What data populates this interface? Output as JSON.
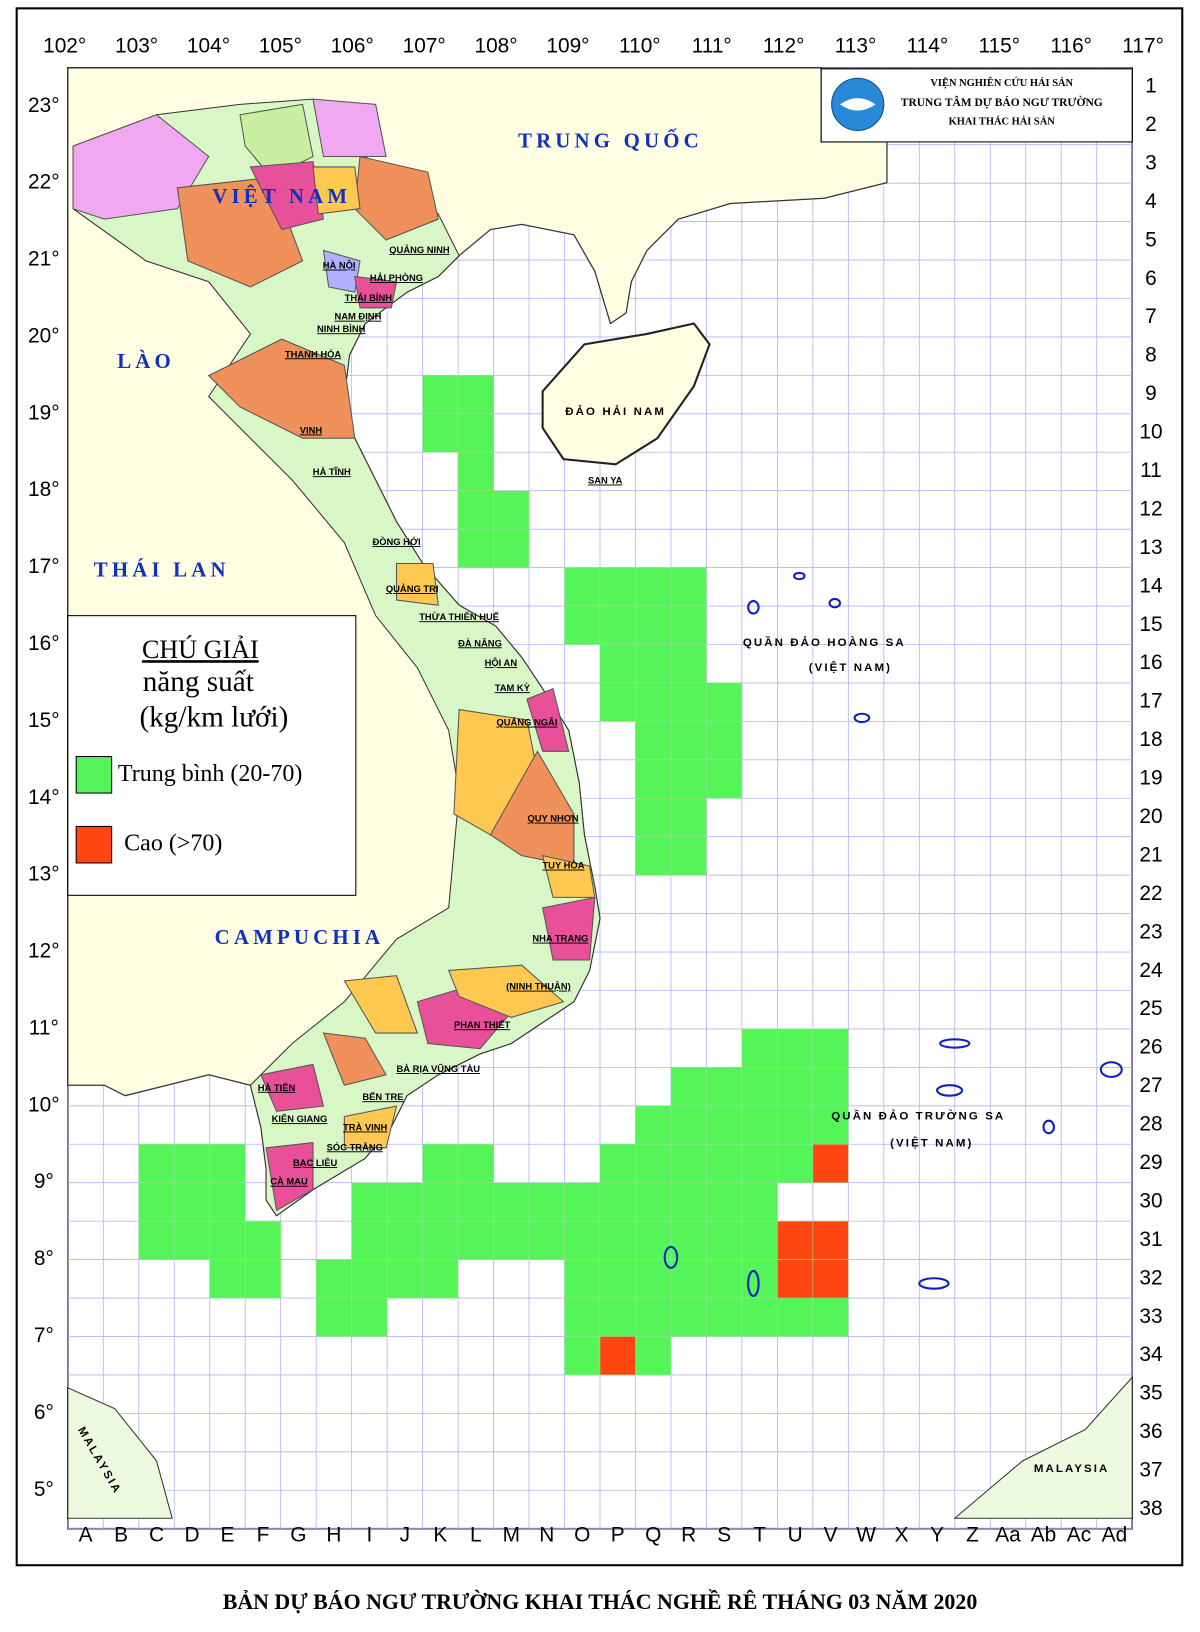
{
  "header": {
    "line1": "VIỆN NGHIÊN CỨU HẢI SẢN",
    "line2": "TRUNG TÂM DỰ BÁO NGƯ TRƯỜNG",
    "line3": "KHAI THÁC HẢI SẢN"
  },
  "longitudes": [
    "102°",
    "103°",
    "104°",
    "105°",
    "106°",
    "107°",
    "108°",
    "109°",
    "110°",
    "111°",
    "112°",
    "113°",
    "114°",
    "115°",
    "116°",
    "117°"
  ],
  "latitudes": [
    "23°",
    "22°",
    "21°",
    "20°",
    "19°",
    "18°",
    "17°",
    "16°",
    "15°",
    "14°",
    "13°",
    "12°",
    "11°",
    "10°",
    "9°",
    "8°",
    "7°",
    "6°",
    "5°"
  ],
  "columns": [
    "A",
    "B",
    "C",
    "D",
    "E",
    "F",
    "G",
    "H",
    "I",
    "J",
    "K",
    "L",
    "M",
    "N",
    "O",
    "P",
    "Q",
    "R",
    "S",
    "T",
    "U",
    "V",
    "W",
    "X",
    "Y",
    "Z",
    "Aa",
    "Ab",
    "Ac",
    "Ad"
  ],
  "rows": [
    1,
    2,
    3,
    4,
    5,
    6,
    7,
    8,
    9,
    10,
    11,
    12,
    13,
    14,
    15,
    16,
    17,
    18,
    19,
    20,
    21,
    22,
    23,
    24,
    25,
    26,
    27,
    28,
    29,
    30,
    31,
    32,
    33,
    34,
    35,
    36,
    37,
    38
  ],
  "places": [
    "TRUNG QUỐC",
    "VIỆT NAM",
    "LÀO",
    "THÁI LAN",
    "CAMPUCHIA",
    "ĐẢO HẢI NAM",
    "QUẦN ĐẢO HOÀNG SA",
    "(VIỆT NAM)",
    "QUẦN ĐẢO TRƯỜNG SA",
    "(VIỆT NAM)",
    "MALAYSIA",
    "MALAYSIA",
    "SAN YA"
  ],
  "provinces": [
    "HẢI PHÒNG",
    "QUẢNG NINH",
    "HÀ NỘI",
    "THÁI BÌNH",
    "NAM ĐỊNH",
    "NINH BÌNH",
    "THANH HÓA",
    "VINH",
    "HÀ TĨNH",
    "ĐỒNG HỚI",
    "QUẢNG TRỊ",
    "THỪA THIÊN HUẾ",
    "ĐÀ NẴNG",
    "HỘI AN",
    "TAM KỲ",
    "QUẢNG NGÃI",
    "QUY NHƠN",
    "TUY HÒA",
    "NHA TRANG",
    "(NINH THUẬN)",
    "PHAN THIẾT",
    "BÀ RỊA VŨNG TÀU",
    "BẾN TRE",
    "TRÀ VINH",
    "SÓC TRĂNG",
    "BẠC LIÊU",
    "CÀ MAU",
    "KIÊN GIANG",
    "HÀ TIÊN"
  ],
  "legend": {
    "title": "CHÚ GIẢI",
    "subtitle1": "năng suất",
    "subtitle2": "(kg/km lưới)",
    "items": [
      {
        "label": "Trung bình (20-70)",
        "color": "#55f55a",
        "cells": [
          {
            "row": 9,
            "cols": [
              "K",
              "L"
            ]
          },
          {
            "row": 10,
            "cols": [
              "K",
              "L"
            ]
          },
          {
            "row": 11,
            "cols": [
              "L"
            ]
          },
          {
            "row": 12,
            "cols": [
              "L",
              "M"
            ]
          },
          {
            "row": 13,
            "cols": [
              "L",
              "M"
            ]
          },
          {
            "row": 14,
            "cols": [
              "O",
              "P",
              "Q",
              "R"
            ]
          },
          {
            "row": 15,
            "cols": [
              "O",
              "P",
              "Q",
              "R"
            ]
          },
          {
            "row": 16,
            "cols": [
              "P",
              "Q",
              "R"
            ]
          },
          {
            "row": 17,
            "cols": [
              "P",
              "Q",
              "R",
              "S"
            ]
          },
          {
            "row": 18,
            "cols": [
              "Q",
              "R",
              "S"
            ]
          },
          {
            "row": 19,
            "cols": [
              "Q",
              "R",
              "S"
            ]
          },
          {
            "row": 20,
            "cols": [
              "Q",
              "R"
            ]
          },
          {
            "row": 21,
            "cols": [
              "Q",
              "R"
            ]
          },
          {
            "row": 26,
            "cols": [
              "T",
              "U",
              "V"
            ]
          },
          {
            "row": 27,
            "cols": [
              "R",
              "S",
              "T",
              "U",
              "V"
            ]
          },
          {
            "row": 28,
            "cols": [
              "Q",
              "R",
              "S",
              "T",
              "U",
              "V"
            ]
          },
          {
            "row": 29,
            "cols": [
              "C",
              "D",
              "E",
              "K",
              "L",
              "P",
              "Q",
              "R",
              "S",
              "T",
              "U"
            ]
          },
          {
            "row": 30,
            "cols": [
              "C",
              "D",
              "E",
              "I",
              "J",
              "K",
              "L",
              "M",
              "N",
              "O",
              "P",
              "Q",
              "R",
              "S",
              "T"
            ]
          },
          {
            "row": 31,
            "cols": [
              "C",
              "D",
              "E",
              "F",
              "I",
              "J",
              "K",
              "L",
              "M",
              "N",
              "O",
              "P",
              "Q",
              "R",
              "S",
              "T"
            ]
          },
          {
            "row": 32,
            "cols": [
              "E",
              "F",
              "H",
              "I",
              "J",
              "K",
              "O",
              "P",
              "Q",
              "R",
              "S",
              "T"
            ]
          },
          {
            "row": 33,
            "cols": [
              "H",
              "I",
              "O",
              "P",
              "Q",
              "R",
              "S",
              "T",
              "U",
              "V"
            ]
          },
          {
            "row": 34,
            "cols": [
              "O",
              "Q"
            ]
          }
        ]
      },
      {
        "label": "Cao (>70)",
        "color": "#ff4510",
        "cells": [
          {
            "row": 29,
            "cols": [
              "V"
            ]
          },
          {
            "row": 31,
            "cols": [
              "U",
              "V"
            ]
          },
          {
            "row": 32,
            "cols": [
              "U",
              "V"
            ]
          },
          {
            "row": 34,
            "cols": [
              "P"
            ]
          }
        ]
      }
    ]
  },
  "caption": "BẢN DỰ BÁO NGƯ TRƯỜNG KHAI THÁC NGHỀ RÊ THÁNG 03 NĂM 2020"
}
